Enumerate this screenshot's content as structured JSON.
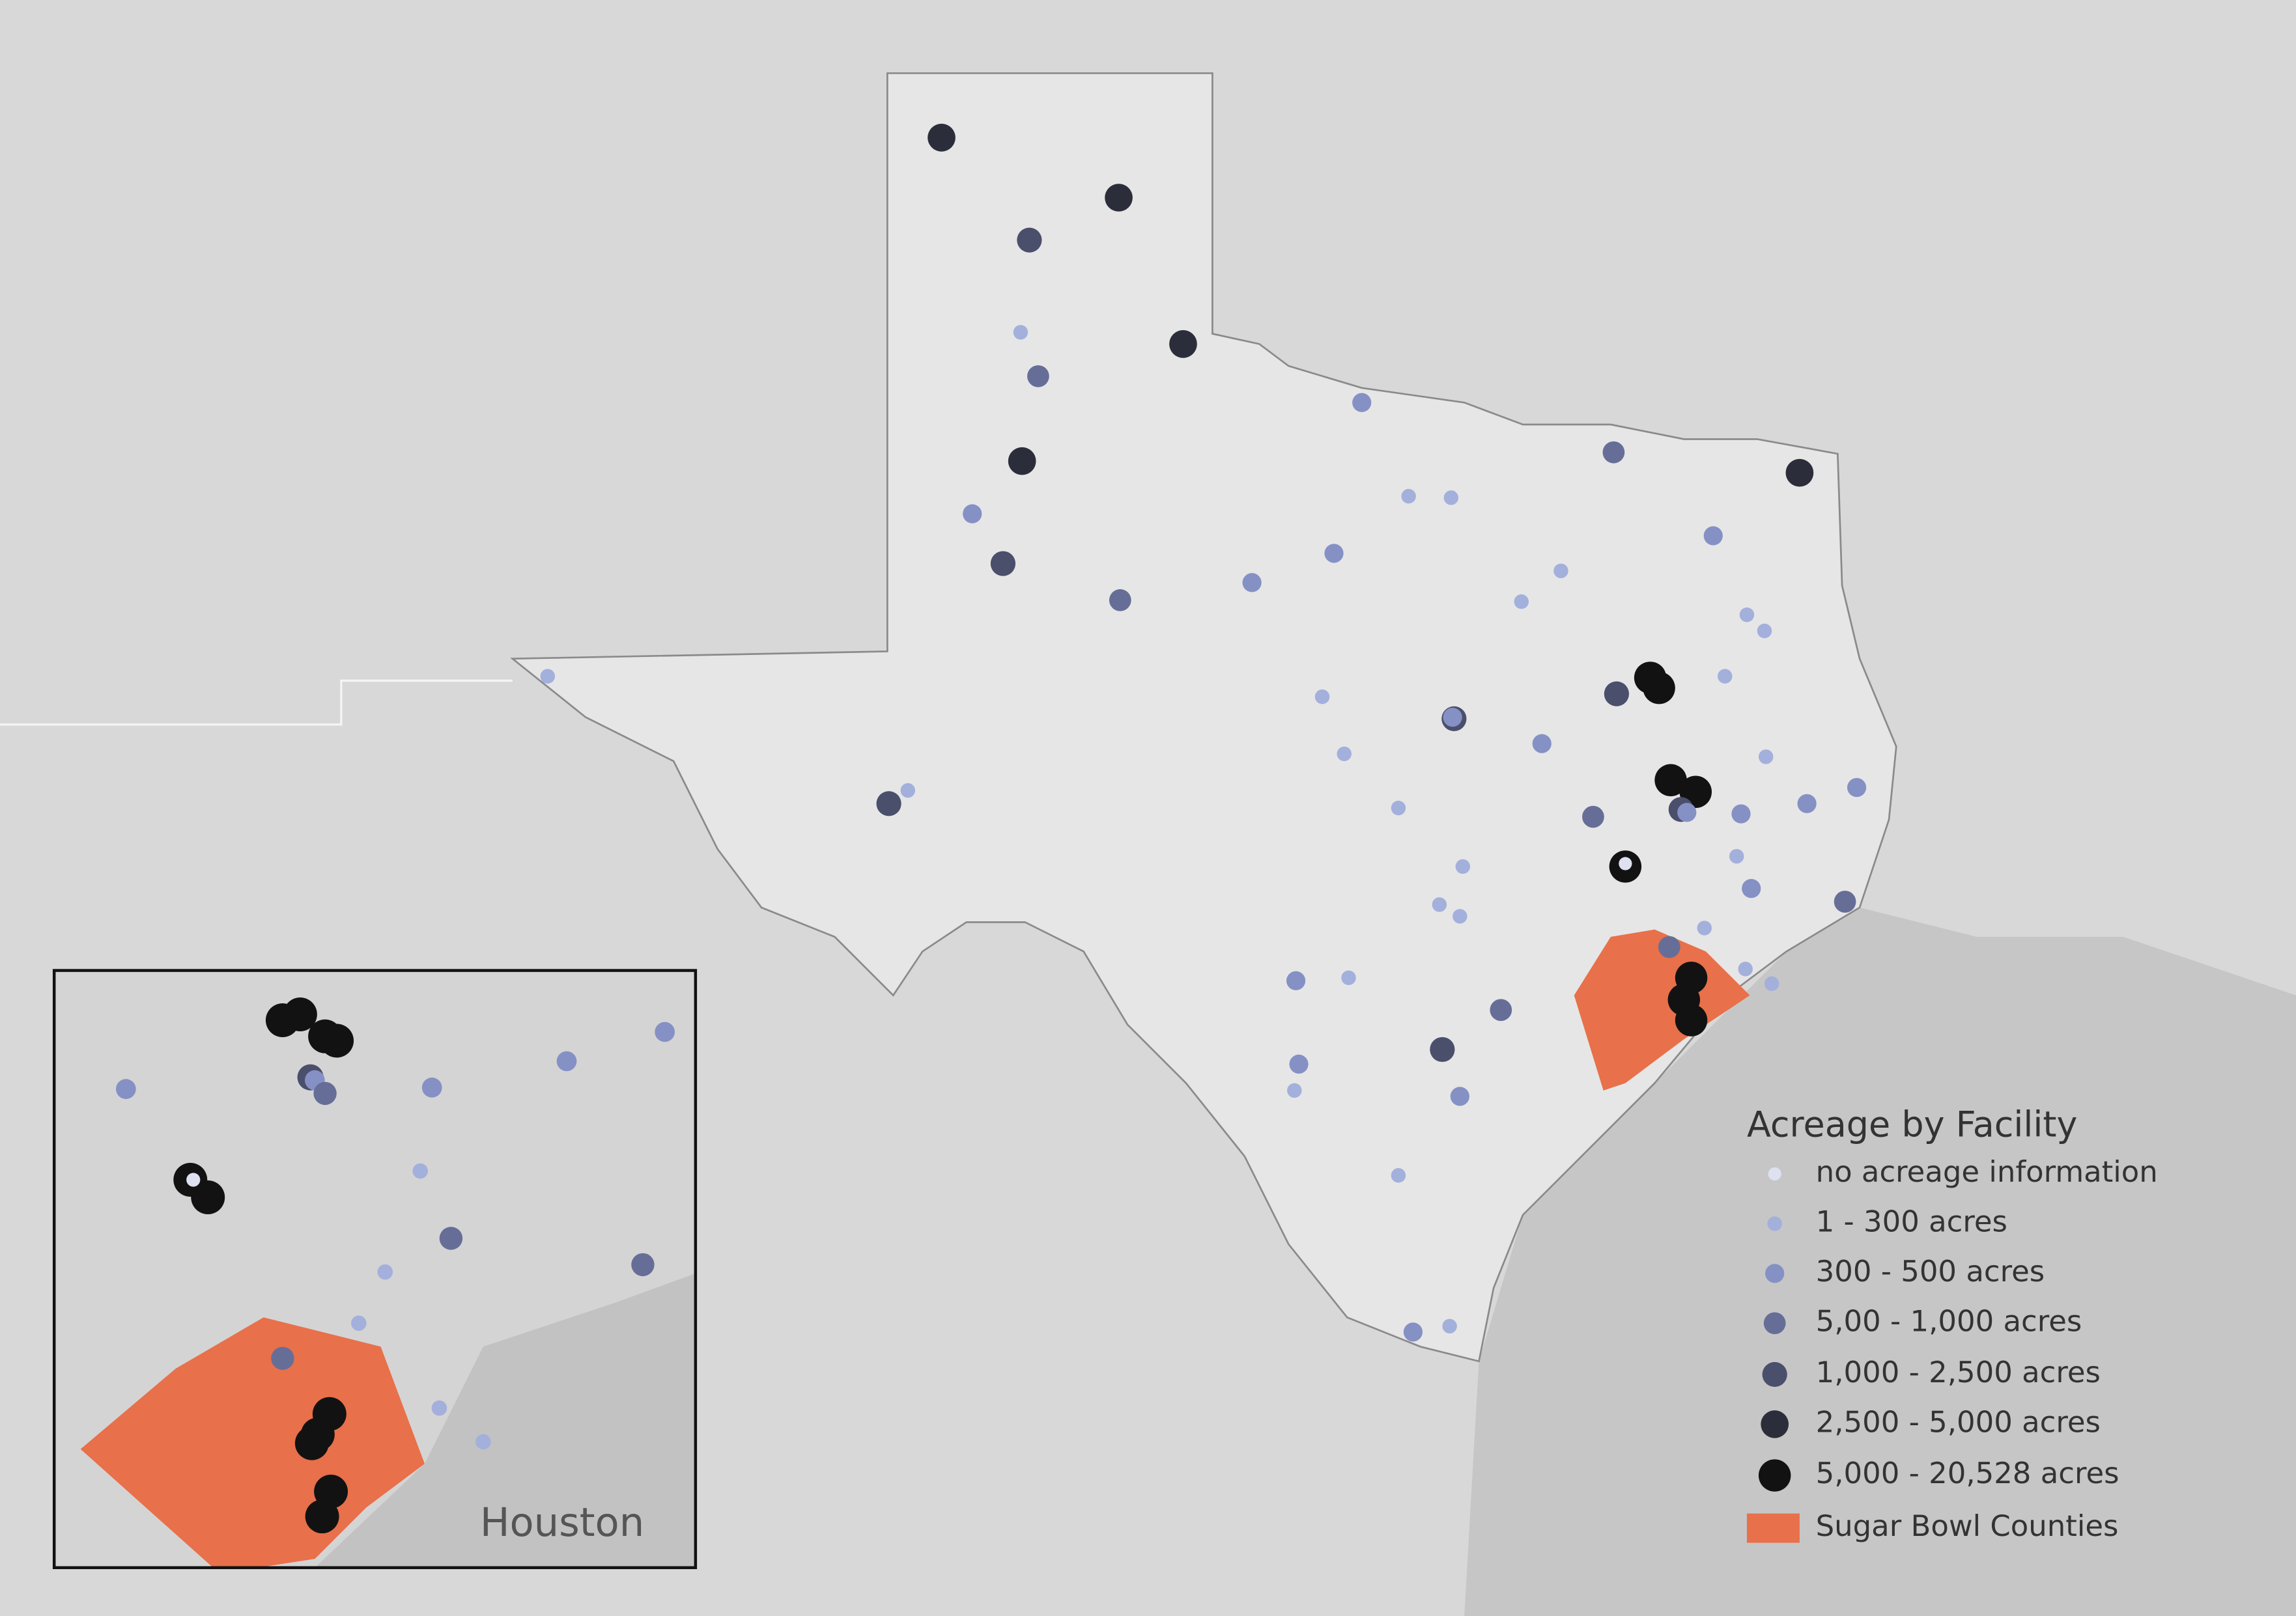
{
  "legend": {
    "title": "Acreage by Facility",
    "items": [
      {
        "label": "no acreage information",
        "color": "#dde1f0"
      },
      {
        "label": "1 - 300 acres",
        "color": "#a3b0dc"
      },
      {
        "label": "300 - 500 acres",
        "color": "#8591c4"
      },
      {
        "label": "5,00 - 1,000 acres",
        "color": "#666e98"
      },
      {
        "label": "1,000 - 2,500 acres",
        "color": "#4a4f6c"
      },
      {
        "label": "2,500 - 5,000 acres",
        "color": "#2b2e3a"
      },
      {
        "label": "5,000 - 20,528 acres",
        "color": "#121212"
      },
      {
        "label": "Sugar Bowl Counties",
        "color": "#e8704a"
      }
    ]
  },
  "inset": {
    "label": "Houston"
  }
}
